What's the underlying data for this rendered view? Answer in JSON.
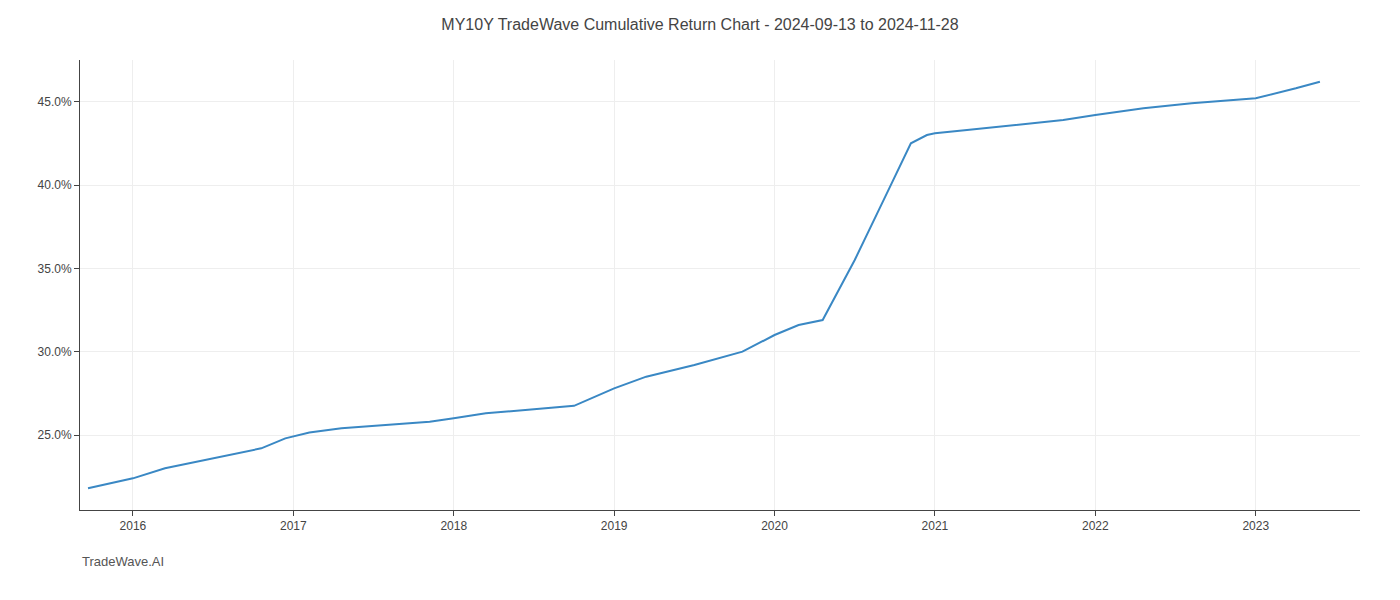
{
  "chart_data": {
    "type": "line",
    "title": "MY10Y TradeWave Cumulative Return Chart - 2024-09-13 to 2024-11-28",
    "annotations": [
      "TradeWave.AI"
    ],
    "color": "#3a88c4",
    "x": [
      2015.72,
      2016.0,
      2016.2,
      2016.5,
      2016.8,
      2016.95,
      2017.1,
      2017.3,
      2017.6,
      2017.85,
      2018.0,
      2018.2,
      2018.5,
      2018.75,
      2019.0,
      2019.2,
      2019.5,
      2019.8,
      2020.0,
      2020.08,
      2020.15,
      2020.3,
      2020.5,
      2020.7,
      2020.85,
      2020.95,
      2021.0,
      2021.2,
      2021.5,
      2021.8,
      2022.0,
      2022.3,
      2022.6,
      2022.85,
      2023.0,
      2023.25,
      2023.4
    ],
    "values": [
      21.8,
      22.4,
      23.0,
      23.6,
      24.2,
      24.8,
      25.15,
      25.4,
      25.6,
      25.8,
      26.0,
      26.3,
      26.55,
      26.75,
      27.8,
      28.5,
      29.2,
      30.0,
      31.0,
      31.3,
      31.6,
      31.9,
      35.5,
      39.5,
      42.5,
      43.0,
      43.1,
      43.3,
      43.6,
      43.9,
      44.2,
      44.6,
      44.9,
      45.1,
      45.2,
      45.8,
      46.2
    ],
    "xlim": [
      2015.67,
      2023.65
    ],
    "ylim": [
      20.5,
      47.5
    ],
    "xticks": [
      2016,
      2017,
      2018,
      2019,
      2020,
      2021,
      2022,
      2023
    ],
    "yticks": [
      {
        "value": 25.0,
        "label": "25.0%"
      },
      {
        "value": 30.0,
        "label": "30.0%"
      },
      {
        "value": 35.0,
        "label": "35.0%"
      },
      {
        "value": 40.0,
        "label": "40.0%"
      },
      {
        "value": 45.0,
        "label": "45.0%"
      }
    ],
    "grid": true
  }
}
